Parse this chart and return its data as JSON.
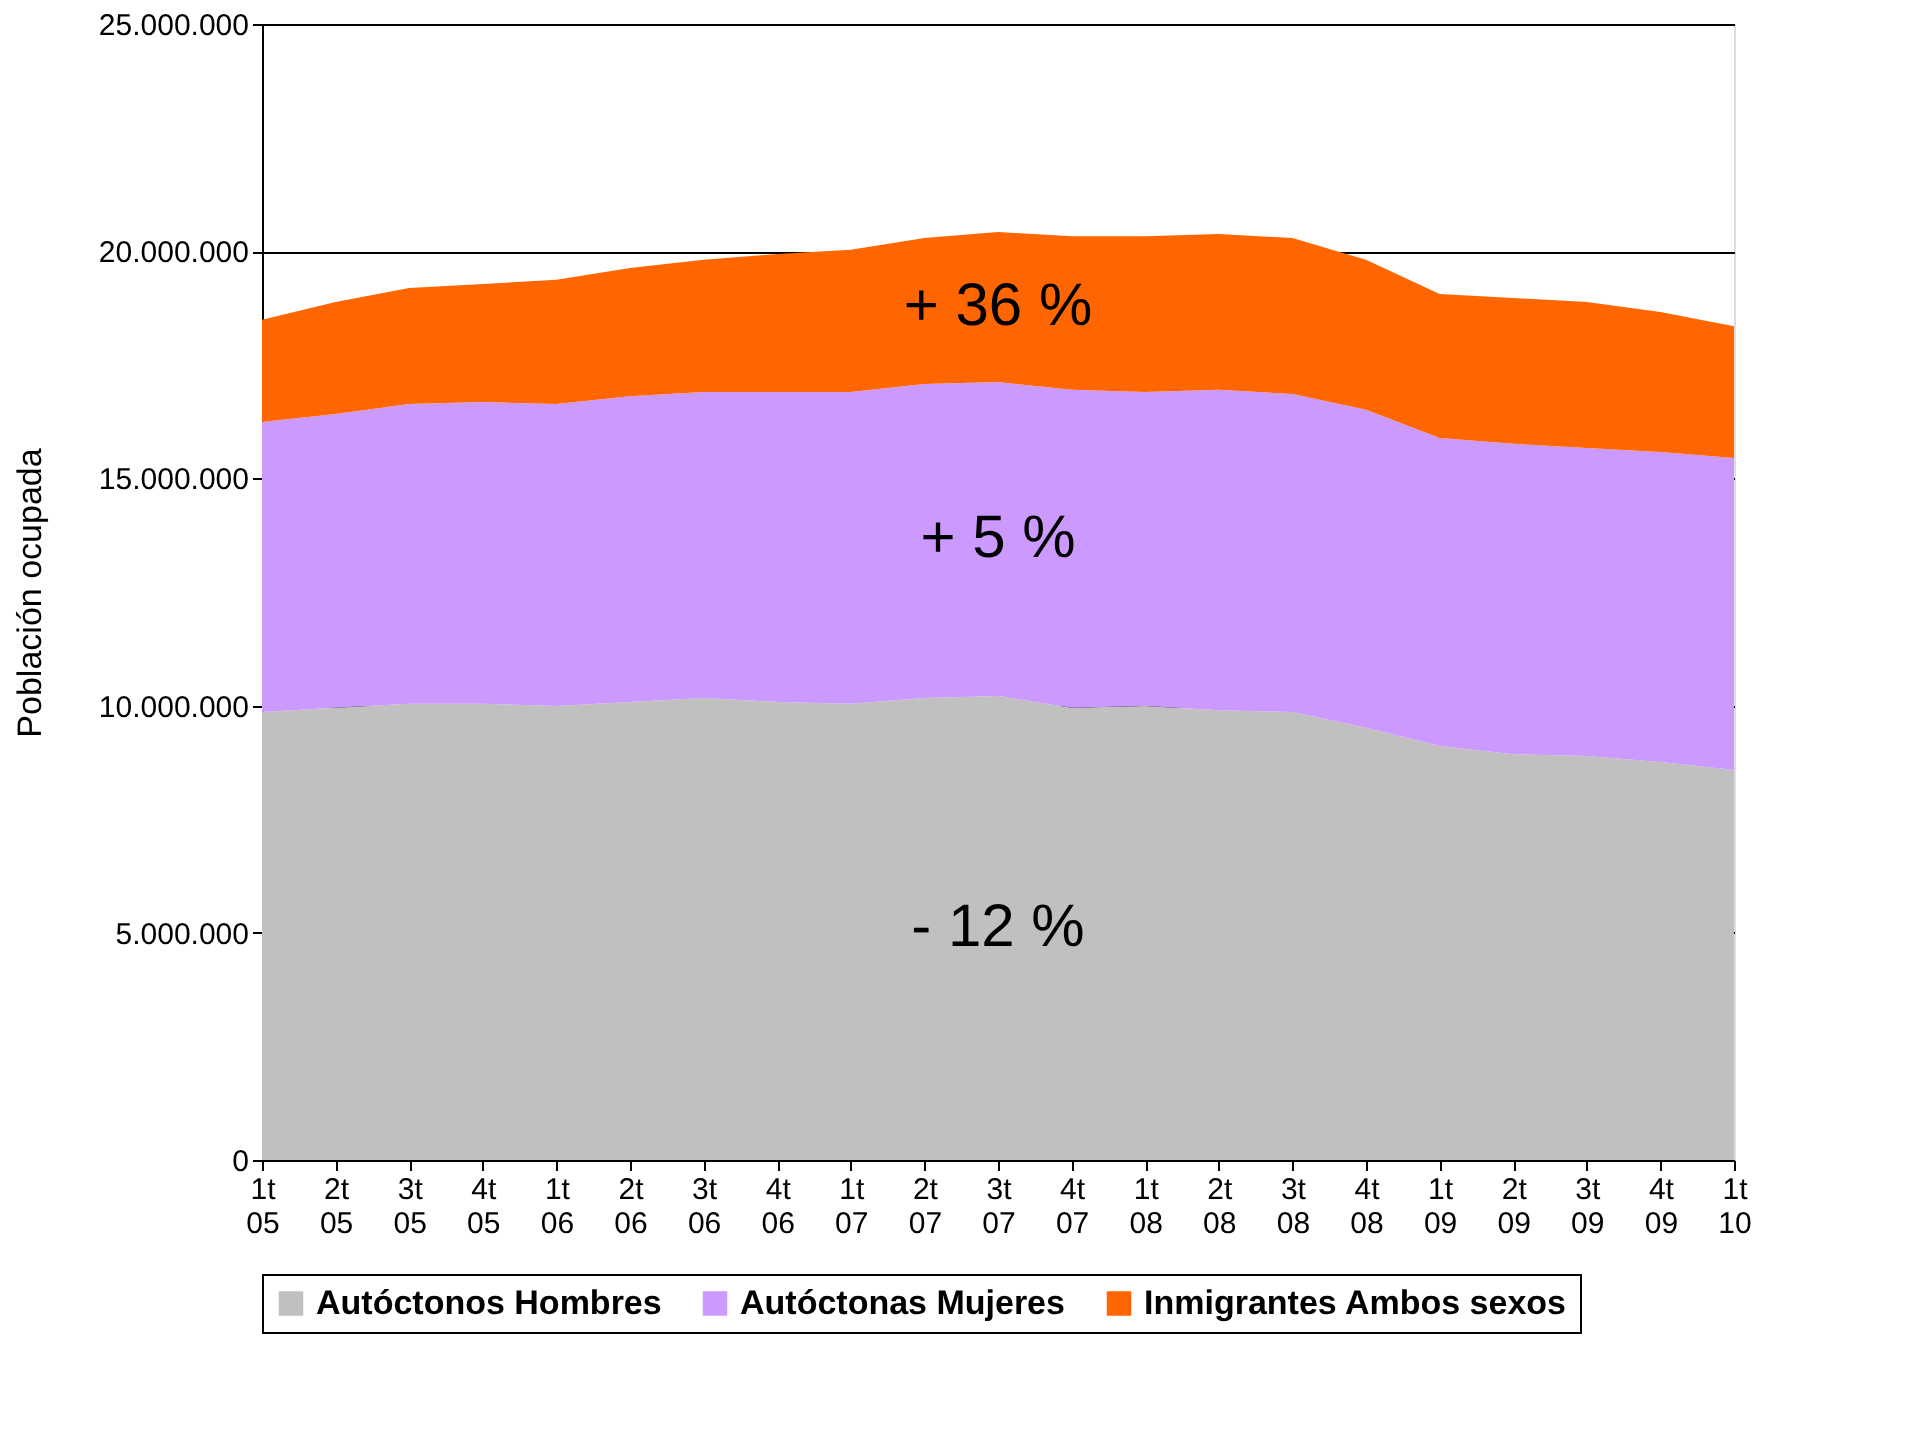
{
  "chart_data": {
    "type": "area",
    "stacked": true,
    "ylabel": "Población ocupada",
    "categories": [
      "1t 05",
      "2t 05",
      "3t 05",
      "4t 05",
      "1t 06",
      "2t 06",
      "3t 06",
      "4t 06",
      "1t 07",
      "2t 07",
      "3t 07",
      "4t 07",
      "1t 08",
      "2t 08",
      "3t 08",
      "4t 08",
      "1t 09",
      "2t 09",
      "3t 09",
      "4t 09",
      "1t 10"
    ],
    "series": [
      {
        "name": "Autóctonos Hombres",
        "color": "#c0c0c0",
        "values": [
          9860000,
          9950000,
          10040000,
          10040000,
          9990000,
          10080000,
          10170000,
          10080000,
          10040000,
          10170000,
          10210000,
          9950000,
          9990000,
          9900000,
          9860000,
          9510000,
          9110000,
          8930000,
          8890000,
          8760000,
          8580000
        ]
      },
      {
        "name": "Autóctonas Mujeres",
        "color": "#cc99ff",
        "values": [
          6380000,
          6470000,
          6600000,
          6640000,
          6650000,
          6730000,
          6730000,
          6820000,
          6860000,
          6910000,
          6910000,
          7000000,
          6910000,
          7050000,
          7000000,
          7000000,
          6780000,
          6830000,
          6780000,
          6820000,
          6870000
        ]
      },
      {
        "name": "Inmigrantes Ambos sexos",
        "color": "#ff6600",
        "values": [
          2250000,
          2460000,
          2550000,
          2600000,
          2730000,
          2820000,
          2910000,
          3040000,
          3130000,
          3210000,
          3300000,
          3380000,
          3430000,
          3430000,
          3430000,
          3300000,
          3170000,
          3210000,
          3210000,
          3080000,
          2900000
        ]
      }
    ],
    "ylim": [
      0,
      25000000
    ],
    "yticks": [
      0,
      {
        "value": 5000000,
        "label": "5.000.000"
      },
      {
        "value": 10000000,
        "label": "10.000.000"
      },
      {
        "value": 15000000,
        "label": "15.000.000"
      },
      {
        "value": 20000000,
        "label": "20.000.000"
      },
      {
        "value": 25000000,
        "label": "25.000.000"
      }
    ],
    "grid": "y",
    "legend": "bottom",
    "annotations": [
      "+ 36 %",
      "+ 5 %",
      "- 12 %"
    ]
  }
}
